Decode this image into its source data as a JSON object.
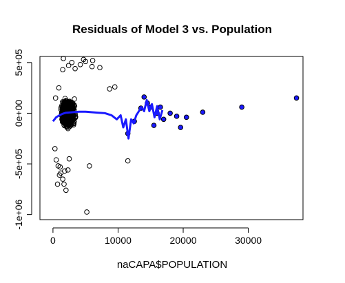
{
  "chart_data": {
    "type": "scatter",
    "title": "Residuals of Model 3 vs. Population",
    "xlabel": "naCAPA$POPULATION",
    "ylabel": "",
    "xlim": [
      -2000,
      38400
    ],
    "ylim": [
      -1050000,
      560000
    ],
    "x_ticks": [
      0,
      10000,
      20000,
      30000
    ],
    "x_tick_labels": [
      "0",
      "10000",
      "20000",
      "30000"
    ],
    "y_ticks": [
      -1000000,
      -500000,
      0,
      500000
    ],
    "y_tick_labels": [
      "-1e+06",
      "-5e+05",
      "0e+00",
      "5e+05"
    ],
    "colors": {
      "points": "#000000",
      "highlight": "#1a1aff",
      "smoother": "#1a1aff"
    },
    "series": [
      {
        "kind": "outliers",
        "x": [
          300,
          500,
          800,
          1000,
          1200,
          1500,
          1700,
          2000,
          2300,
          700,
          1100,
          1800,
          2500,
          5200,
          5600,
          11500,
          1600,
          2900,
          4700,
          6100,
          8700,
          9500,
          1500,
          2400,
          3400,
          4200,
          5000,
          6000,
          7200,
          900,
          400
        ],
        "y": [
          -350000,
          -460000,
          -520000,
          -610000,
          -590000,
          -650000,
          -700000,
          -760000,
          -560000,
          -700000,
          -530000,
          -570000,
          -450000,
          -975000,
          -520000,
          -470000,
          540000,
          500000,
          530000,
          520000,
          240000,
          260000,
          430000,
          470000,
          440000,
          480000,
          510000,
          460000,
          450000,
          250000,
          150000
        ]
      },
      {
        "kind": "highlighted",
        "x": [
          11500,
          12500,
          13500,
          14000,
          14500,
          15000,
          15500,
          16000,
          16500,
          17000,
          18000,
          19000,
          19600,
          20500,
          23000,
          29000,
          37400
        ],
        "y": [
          -200000,
          -80000,
          50000,
          160000,
          100000,
          60000,
          -120000,
          0,
          60000,
          -60000,
          0,
          -30000,
          -140000,
          -40000,
          10000,
          60000,
          150000
        ]
      },
      {
        "kind": "smoother",
        "x": [
          0,
          500,
          1000,
          1500,
          2000,
          3000,
          4000,
          5000,
          6000,
          7000,
          8000,
          9000,
          9800,
          10400,
          10800,
          11200,
          11600,
          12000,
          12400,
          12800,
          13200,
          13600,
          14000,
          14400,
          14800,
          15200,
          15600,
          16000,
          16400,
          16800
        ],
        "y": [
          -80000,
          -40000,
          -20000,
          -5000,
          5000,
          10000,
          15000,
          15000,
          10000,
          5000,
          0,
          -20000,
          -60000,
          -20000,
          -140000,
          -60000,
          -250000,
          -60000,
          -100000,
          -20000,
          20000,
          60000,
          20000,
          130000,
          20000,
          90000,
          -40000,
          70000,
          -60000,
          30000
        ]
      }
    ]
  }
}
